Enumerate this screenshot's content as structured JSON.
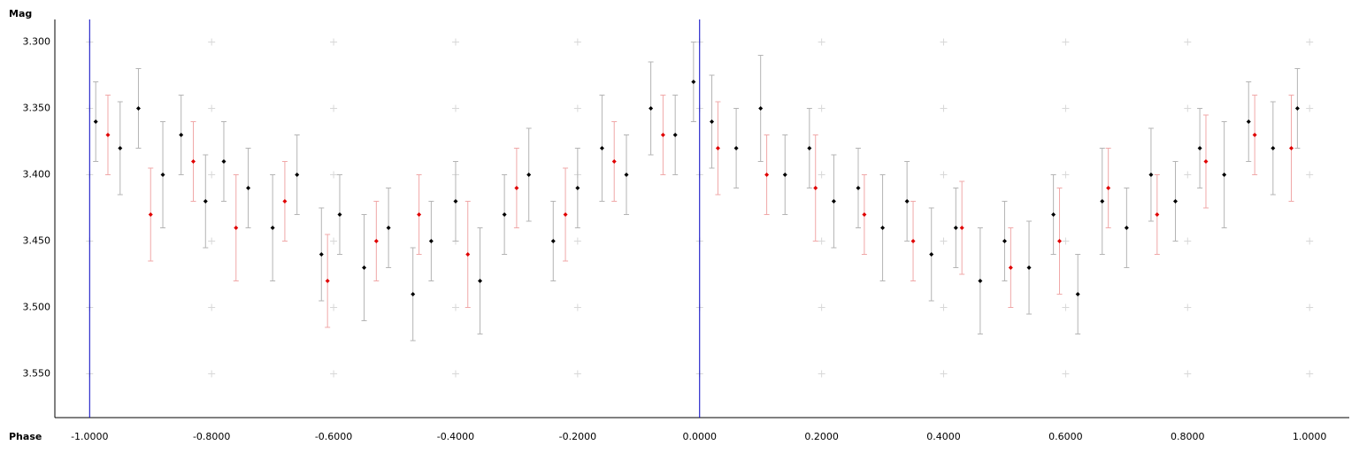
{
  "chart_data": {
    "type": "scatter",
    "y_label": "Mag",
    "x_label": "Phase",
    "xlim": [
      -1.057,
      1.065
    ],
    "ylim": [
      3.283,
      3.583
    ],
    "y_reversed": true,
    "xticks": [
      {
        "value": -1.0,
        "label": "-1.0000"
      },
      {
        "value": -0.8,
        "label": "-0.8000"
      },
      {
        "value": -0.6,
        "label": "-0.6000"
      },
      {
        "value": -0.4,
        "label": "-0.4000"
      },
      {
        "value": -0.2,
        "label": "-0.2000"
      },
      {
        "value": 0,
        "label": "0.0000"
      },
      {
        "value": 0.2,
        "label": "0.2000"
      },
      {
        "value": 0.4,
        "label": "0.4000"
      },
      {
        "value": 0.6,
        "label": "0.6000"
      },
      {
        "value": 0.8,
        "label": "0.8000"
      },
      {
        "value": 1.0,
        "label": "1.0000"
      }
    ],
    "yticks": [
      {
        "value": 3.3,
        "label": "3.300"
      },
      {
        "value": 3.35,
        "label": "3.350"
      },
      {
        "value": 3.4,
        "label": "3.400"
      },
      {
        "value": 3.45,
        "label": "3.450"
      },
      {
        "value": 3.5,
        "label": "3.500"
      },
      {
        "value": 3.55,
        "label": "3.550"
      }
    ],
    "grid": "crosses",
    "grid_color": "#d8d8d8",
    "vlines": [
      -1.0,
      0
    ],
    "vline_color": "#0000c0",
    "series": [
      {
        "color": "#000000",
        "errorbar_color": "#b4b4b4",
        "x": [
          -0.99,
          -0.95,
          -0.92,
          -0.88,
          -0.85,
          -0.81,
          -0.78,
          -0.74,
          -0.7,
          -0.66,
          -0.62,
          -0.59,
          -0.55,
          -0.51,
          -0.47,
          -0.44,
          -0.4,
          -0.36,
          -0.32,
          -0.28,
          -0.24,
          -0.2,
          -0.16,
          -0.12,
          -0.08,
          -0.04,
          -0.01,
          0.02,
          0.06,
          0.1,
          0.14,
          0.18,
          0.22,
          0.26,
          0.3,
          0.34,
          0.38,
          0.42,
          0.46,
          0.5,
          0.54,
          0.58,
          0.62,
          0.66,
          0.7,
          0.74,
          0.78,
          0.82,
          0.86,
          0.9,
          0.94,
          0.98
        ],
        "values": [
          3.36,
          3.38,
          3.35,
          3.4,
          3.37,
          3.42,
          3.39,
          3.41,
          3.44,
          3.4,
          3.46,
          3.43,
          3.47,
          3.44,
          3.49,
          3.45,
          3.42,
          3.48,
          3.43,
          3.4,
          3.45,
          3.41,
          3.38,
          3.4,
          3.35,
          3.37,
          3.33,
          3.36,
          3.38,
          3.35,
          3.4,
          3.38,
          3.42,
          3.41,
          3.44,
          3.42,
          3.46,
          3.44,
          3.48,
          3.45,
          3.47,
          3.43,
          3.49,
          3.42,
          3.44,
          3.4,
          3.42,
          3.38,
          3.4,
          3.36,
          3.38,
          3.35
        ],
        "errors": [
          0.03,
          0.035,
          0.03,
          0.04,
          0.03,
          0.035,
          0.03,
          0.03,
          0.04,
          0.03,
          0.035,
          0.03,
          0.04,
          0.03,
          0.035,
          0.03,
          0.03,
          0.04,
          0.03,
          0.035,
          0.03,
          0.03,
          0.04,
          0.03,
          0.035,
          0.03,
          0.03,
          0.035,
          0.03,
          0.04,
          0.03,
          0.03,
          0.035,
          0.03,
          0.04,
          0.03,
          0.035,
          0.03,
          0.04,
          0.03,
          0.035,
          0.03,
          0.03,
          0.04,
          0.03,
          0.035,
          0.03,
          0.03,
          0.04,
          0.03,
          0.035,
          0.03
        ]
      },
      {
        "color": "#e00000",
        "errorbar_color": "#f0a8a8",
        "x": [
          -0.97,
          -0.9,
          -0.83,
          -0.76,
          -0.68,
          -0.61,
          -0.53,
          -0.46,
          -0.38,
          -0.3,
          -0.22,
          -0.14,
          -0.06,
          0.03,
          0.11,
          0.19,
          0.27,
          0.35,
          0.43,
          0.51,
          0.59,
          0.67,
          0.75,
          0.83,
          0.91,
          0.97
        ],
        "values": [
          3.37,
          3.43,
          3.39,
          3.44,
          3.42,
          3.48,
          3.45,
          3.43,
          3.46,
          3.41,
          3.43,
          3.39,
          3.37,
          3.38,
          3.4,
          3.41,
          3.43,
          3.45,
          3.44,
          3.47,
          3.45,
          3.41,
          3.43,
          3.39,
          3.37,
          3.38
        ],
        "errors": [
          0.03,
          0.035,
          0.03,
          0.04,
          0.03,
          0.035,
          0.03,
          0.03,
          0.04,
          0.03,
          0.035,
          0.03,
          0.03,
          0.035,
          0.03,
          0.04,
          0.03,
          0.03,
          0.035,
          0.03,
          0.04,
          0.03,
          0.03,
          0.035,
          0.03,
          0.04
        ]
      }
    ]
  }
}
